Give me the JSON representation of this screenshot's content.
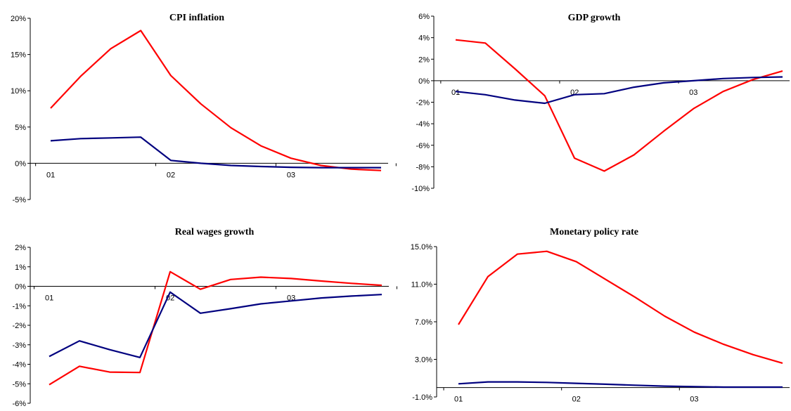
{
  "colors": {
    "red": "#ff0000",
    "navy": "#00007f"
  },
  "chart_data": [
    {
      "type": "line",
      "title": "CPI inflation",
      "xlabel": "",
      "ylabel": "",
      "x": [
        0,
        1,
        2,
        3,
        4,
        5,
        6,
        7,
        8,
        9,
        10,
        11
      ],
      "x_tick_labels": [
        "01",
        "02",
        "03"
      ],
      "x_tick_positions": [
        0,
        4,
        8
      ],
      "y_ticks": [
        "20%",
        "15%",
        "10%",
        "5%",
        "0%",
        "-5%"
      ],
      "y_tick_values": [
        20,
        15,
        10,
        5,
        0,
        -5
      ],
      "ylim": [
        -5,
        20
      ],
      "y_unit": "%",
      "series": [
        {
          "color": "#ff0000",
          "values": [
            7.6,
            12.0,
            15.8,
            18.3,
            12.1,
            8.2,
            4.9,
            2.4,
            0.7,
            -0.3,
            -0.8,
            -1.0
          ]
        },
        {
          "color": "#00007f",
          "values": [
            3.1,
            3.4,
            3.5,
            3.6,
            0.4,
            0.0,
            -0.3,
            -0.45,
            -0.55,
            -0.6,
            -0.6,
            -0.6
          ]
        }
      ]
    },
    {
      "type": "line",
      "title": "GDP growth",
      "xlabel": "",
      "ylabel": "",
      "x": [
        0,
        1,
        2,
        3,
        4,
        5,
        6,
        7,
        8,
        9,
        10,
        11
      ],
      "x_tick_labels": [
        "01",
        "02",
        "03"
      ],
      "x_tick_positions": [
        0,
        4,
        8
      ],
      "y_ticks": [
        "6%",
        "4%",
        "2%",
        "0%",
        "-2%",
        "-4%",
        "-6%",
        "-8%",
        "-10%"
      ],
      "y_tick_values": [
        6,
        4,
        2,
        0,
        -2,
        -4,
        -6,
        -8,
        -10
      ],
      "ylim": [
        -10,
        6
      ],
      "y_unit": "%",
      "series": [
        {
          "color": "#ff0000",
          "values": [
            3.8,
            3.5,
            1.1,
            -1.4,
            -7.2,
            -8.4,
            -6.9,
            -4.7,
            -2.6,
            -1.0,
            0.1,
            0.9
          ]
        },
        {
          "color": "#00007f",
          "values": [
            -1.0,
            -1.3,
            -1.8,
            -2.1,
            -1.3,
            -1.2,
            -0.6,
            -0.2,
            0.0,
            0.2,
            0.3,
            0.35
          ]
        }
      ]
    },
    {
      "type": "line",
      "title": "Real wages growth",
      "xlabel": "",
      "ylabel": "",
      "x": [
        0,
        1,
        2,
        3,
        4,
        5,
        6,
        7,
        8,
        9,
        10,
        11
      ],
      "x_tick_labels": [
        "01",
        "02",
        "03"
      ],
      "x_tick_positions": [
        0,
        4,
        8
      ],
      "y_ticks": [
        "2%",
        "1%",
        "0%",
        "-1%",
        "-2%",
        "-3%",
        "-4%",
        "-5%",
        "-6%"
      ],
      "y_tick_values": [
        2,
        1,
        0,
        -1,
        -2,
        -3,
        -4,
        -5,
        -6
      ],
      "ylim": [
        -6,
        2
      ],
      "y_unit": "%",
      "series": [
        {
          "color": "#ff0000",
          "values": [
            -5.05,
            -4.1,
            -4.4,
            -4.42,
            0.75,
            -0.15,
            0.35,
            0.47,
            0.4,
            0.27,
            0.15,
            0.05
          ]
        },
        {
          "color": "#00007f",
          "values": [
            -3.6,
            -2.8,
            -3.25,
            -3.65,
            -0.3,
            -1.38,
            -1.15,
            -0.9,
            -0.75,
            -0.6,
            -0.5,
            -0.42
          ]
        }
      ]
    },
    {
      "type": "line",
      "title": "Monetary policy rate",
      "xlabel": "",
      "ylabel": "",
      "x": [
        0,
        1,
        2,
        3,
        4,
        5,
        6,
        7,
        8,
        9,
        10,
        11
      ],
      "x_tick_labels": [
        "01",
        "02",
        "03"
      ],
      "x_tick_positions": [
        0,
        4,
        8
      ],
      "y_ticks": [
        "15.0%",
        "11.0%",
        "7.0%",
        "3.0%",
        "-1.0%"
      ],
      "y_tick_values": [
        15,
        11,
        7,
        3,
        -1
      ],
      "ylim": [
        -1,
        15
      ],
      "y_unit": "%",
      "series": [
        {
          "color": "#ff0000",
          "values": [
            6.7,
            11.8,
            14.2,
            14.5,
            13.4,
            11.5,
            9.6,
            7.6,
            5.9,
            4.6,
            3.5,
            2.6
          ]
        },
        {
          "color": "#00007f",
          "values": [
            0.4,
            0.6,
            0.6,
            0.55,
            0.45,
            0.35,
            0.25,
            0.15,
            0.1,
            0.05,
            0.05,
            0.05
          ]
        }
      ]
    }
  ]
}
